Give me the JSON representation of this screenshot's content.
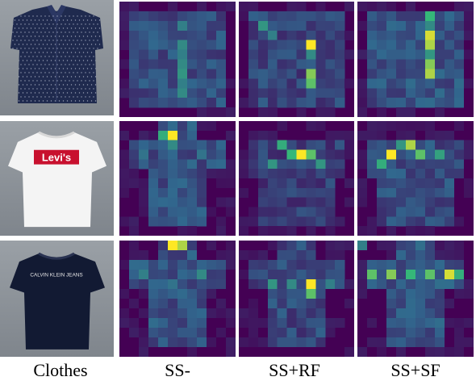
{
  "columns": [
    {
      "label": "Clothes"
    },
    {
      "label": "SS-"
    },
    {
      "label": "SS+RF"
    },
    {
      "label": "SS+SF"
    }
  ],
  "rows": [
    {
      "garment": "dark-blue-polka-dot-blouse-icon"
    },
    {
      "garment": "white-levis-logo-tshirt-icon"
    },
    {
      "garment": "navy-calvin-klein-jeans-tshirt-icon"
    }
  ],
  "garment_logos": {
    "levis": "Levi's",
    "calvin_klein": "CALVIN KLEIN JEANS"
  },
  "colors": {
    "photo_background": "#8f959c",
    "heatmap_low": "#440154",
    "heatmap_mid": "#31688e",
    "heatmap_high": "#35b779",
    "heatmap_peak": "#fde725"
  }
}
